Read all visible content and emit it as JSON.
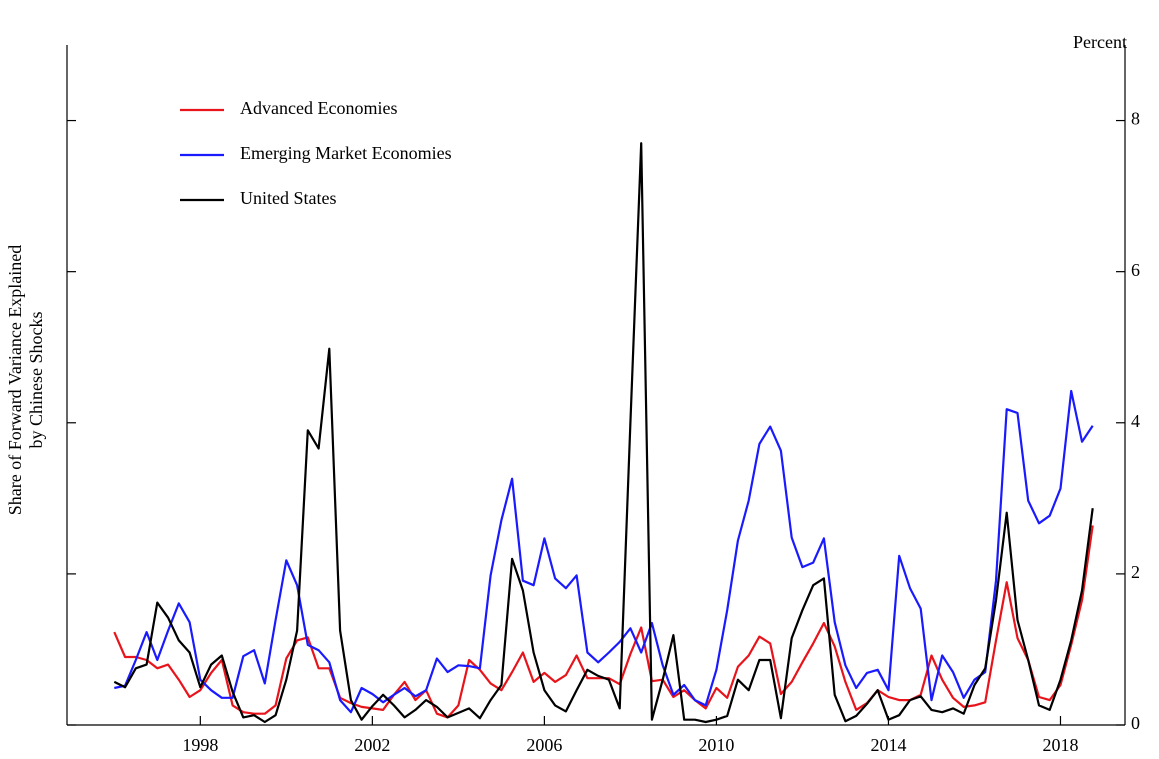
{
  "chart_data": {
    "type": "line",
    "ylabel_lines": [
      "Share of Forward Variance Explained",
      "by Chinese Shocks"
    ],
    "y_unit": "Percent",
    "x": [
      1996,
      1996.25,
      1996.5,
      1996.75,
      1997,
      1997.25,
      1997.5,
      1997.75,
      1998,
      1998.25,
      1998.5,
      1998.75,
      1999,
      1999.25,
      1999.5,
      1999.75,
      2000,
      2000.25,
      2000.5,
      2000.75,
      2001,
      2001.25,
      2001.5,
      2001.75,
      2002,
      2002.25,
      2002.5,
      2002.75,
      2003,
      2003.25,
      2003.5,
      2003.75,
      2004,
      2004.25,
      2004.5,
      2004.75,
      2005,
      2005.25,
      2005.5,
      2005.75,
      2006,
      2006.25,
      2006.5,
      2006.75,
      2007,
      2007.25,
      2007.5,
      2007.75,
      2008,
      2008.25,
      2008.5,
      2008.75,
      2009,
      2009.25,
      2009.5,
      2009.75,
      2010,
      2010.25,
      2010.5,
      2010.75,
      2011,
      2011.25,
      2011.5,
      2011.75,
      2012,
      2012.25,
      2012.5,
      2012.75,
      2013,
      2013.25,
      2013.5,
      2013.75,
      2014,
      2014.25,
      2014.5,
      2014.75,
      2015,
      2015.25,
      2015.5,
      2015.75,
      2016,
      2016.25,
      2016.5,
      2016.75,
      2017,
      2017.25,
      2017.5,
      2017.75,
      2018,
      2018.25,
      2018.5,
      2018.75
    ],
    "series": [
      {
        "name": "Advanced Economies",
        "color": "#e8141b",
        "values": [
          1.23,
          0.9,
          0.9,
          0.86,
          0.75,
          0.8,
          0.6,
          0.37,
          0.46,
          0.69,
          0.86,
          0.26,
          0.17,
          0.15,
          0.15,
          0.26,
          0.88,
          1.12,
          1.16,
          0.75,
          0.75,
          0.36,
          0.29,
          0.24,
          0.22,
          0.2,
          0.4,
          0.57,
          0.33,
          0.46,
          0.15,
          0.1,
          0.26,
          0.86,
          0.73,
          0.55,
          0.46,
          0.7,
          0.96,
          0.57,
          0.69,
          0.57,
          0.66,
          0.92,
          0.62,
          0.62,
          0.62,
          0.54,
          0.94,
          1.29,
          0.58,
          0.6,
          0.37,
          0.46,
          0.33,
          0.22,
          0.49,
          0.36,
          0.77,
          0.92,
          1.17,
          1.08,
          0.41,
          0.57,
          0.83,
          1.08,
          1.35,
          1.04,
          0.57,
          0.2,
          0.29,
          0.46,
          0.37,
          0.33,
          0.33,
          0.4,
          0.92,
          0.6,
          0.36,
          0.24,
          0.26,
          0.3,
          1.12,
          1.89,
          1.15,
          0.86,
          0.37,
          0.33,
          0.53,
          1.06,
          1.65,
          2.64
        ]
      },
      {
        "name": "Emerging Market Economies",
        "color": "#1a1aff",
        "values": [
          0.49,
          0.52,
          0.86,
          1.23,
          0.86,
          1.25,
          1.61,
          1.36,
          0.6,
          0.46,
          0.36,
          0.36,
          0.91,
          0.99,
          0.55,
          1.39,
          2.18,
          1.85,
          1.06,
          0.99,
          0.83,
          0.33,
          0.17,
          0.49,
          0.41,
          0.3,
          0.4,
          0.49,
          0.38,
          0.46,
          0.88,
          0.7,
          0.79,
          0.78,
          0.75,
          1.98,
          2.71,
          3.26,
          1.91,
          1.85,
          2.47,
          1.94,
          1.81,
          1.98,
          0.96,
          0.83,
          0.96,
          1.1,
          1.28,
          0.96,
          1.35,
          0.79,
          0.4,
          0.53,
          0.33,
          0.26,
          0.73,
          1.52,
          2.44,
          2.97,
          3.72,
          3.95,
          3.63,
          2.48,
          2.09,
          2.15,
          2.47,
          1.36,
          0.79,
          0.49,
          0.69,
          0.73,
          0.46,
          2.24,
          1.81,
          1.54,
          0.33,
          0.92,
          0.7,
          0.36,
          0.6,
          0.7,
          1.91,
          4.18,
          4.13,
          2.97,
          2.67,
          2.77,
          3.13,
          4.42,
          3.75,
          3.96
        ]
      },
      {
        "name": "United States",
        "color": "#000000",
        "values": [
          0.57,
          0.5,
          0.75,
          0.8,
          1.62,
          1.42,
          1.12,
          0.96,
          0.5,
          0.8,
          0.92,
          0.44,
          0.1,
          0.13,
          0.04,
          0.13,
          0.6,
          1.25,
          3.9,
          3.66,
          4.98,
          1.25,
          0.33,
          0.07,
          0.25,
          0.4,
          0.26,
          0.1,
          0.2,
          0.33,
          0.24,
          0.1,
          0.16,
          0.22,
          0.09,
          0.33,
          0.53,
          2.2,
          1.78,
          0.96,
          0.46,
          0.26,
          0.18,
          0.46,
          0.73,
          0.65,
          0.6,
          0.22,
          4.0,
          7.7,
          0.07,
          0.6,
          1.19,
          0.07,
          0.07,
          0.04,
          0.07,
          0.12,
          0.6,
          0.46,
          0.86,
          0.86,
          0.09,
          1.15,
          1.52,
          1.85,
          1.94,
          0.4,
          0.05,
          0.12,
          0.28,
          0.46,
          0.07,
          0.13,
          0.33,
          0.38,
          0.2,
          0.17,
          0.22,
          0.15,
          0.53,
          0.75,
          1.65,
          2.81,
          1.39,
          0.86,
          0.26,
          0.2,
          0.6,
          1.12,
          1.78,
          2.87
        ]
      }
    ],
    "xlim": [
      1994.9,
      2019.5
    ],
    "xticks": [
      1998,
      2002,
      2006,
      2010,
      2014,
      2018
    ],
    "ylim": [
      0,
      9
    ],
    "yticks": [
      0,
      2,
      4,
      6,
      8
    ],
    "legend": "upper-left",
    "grid": false
  }
}
